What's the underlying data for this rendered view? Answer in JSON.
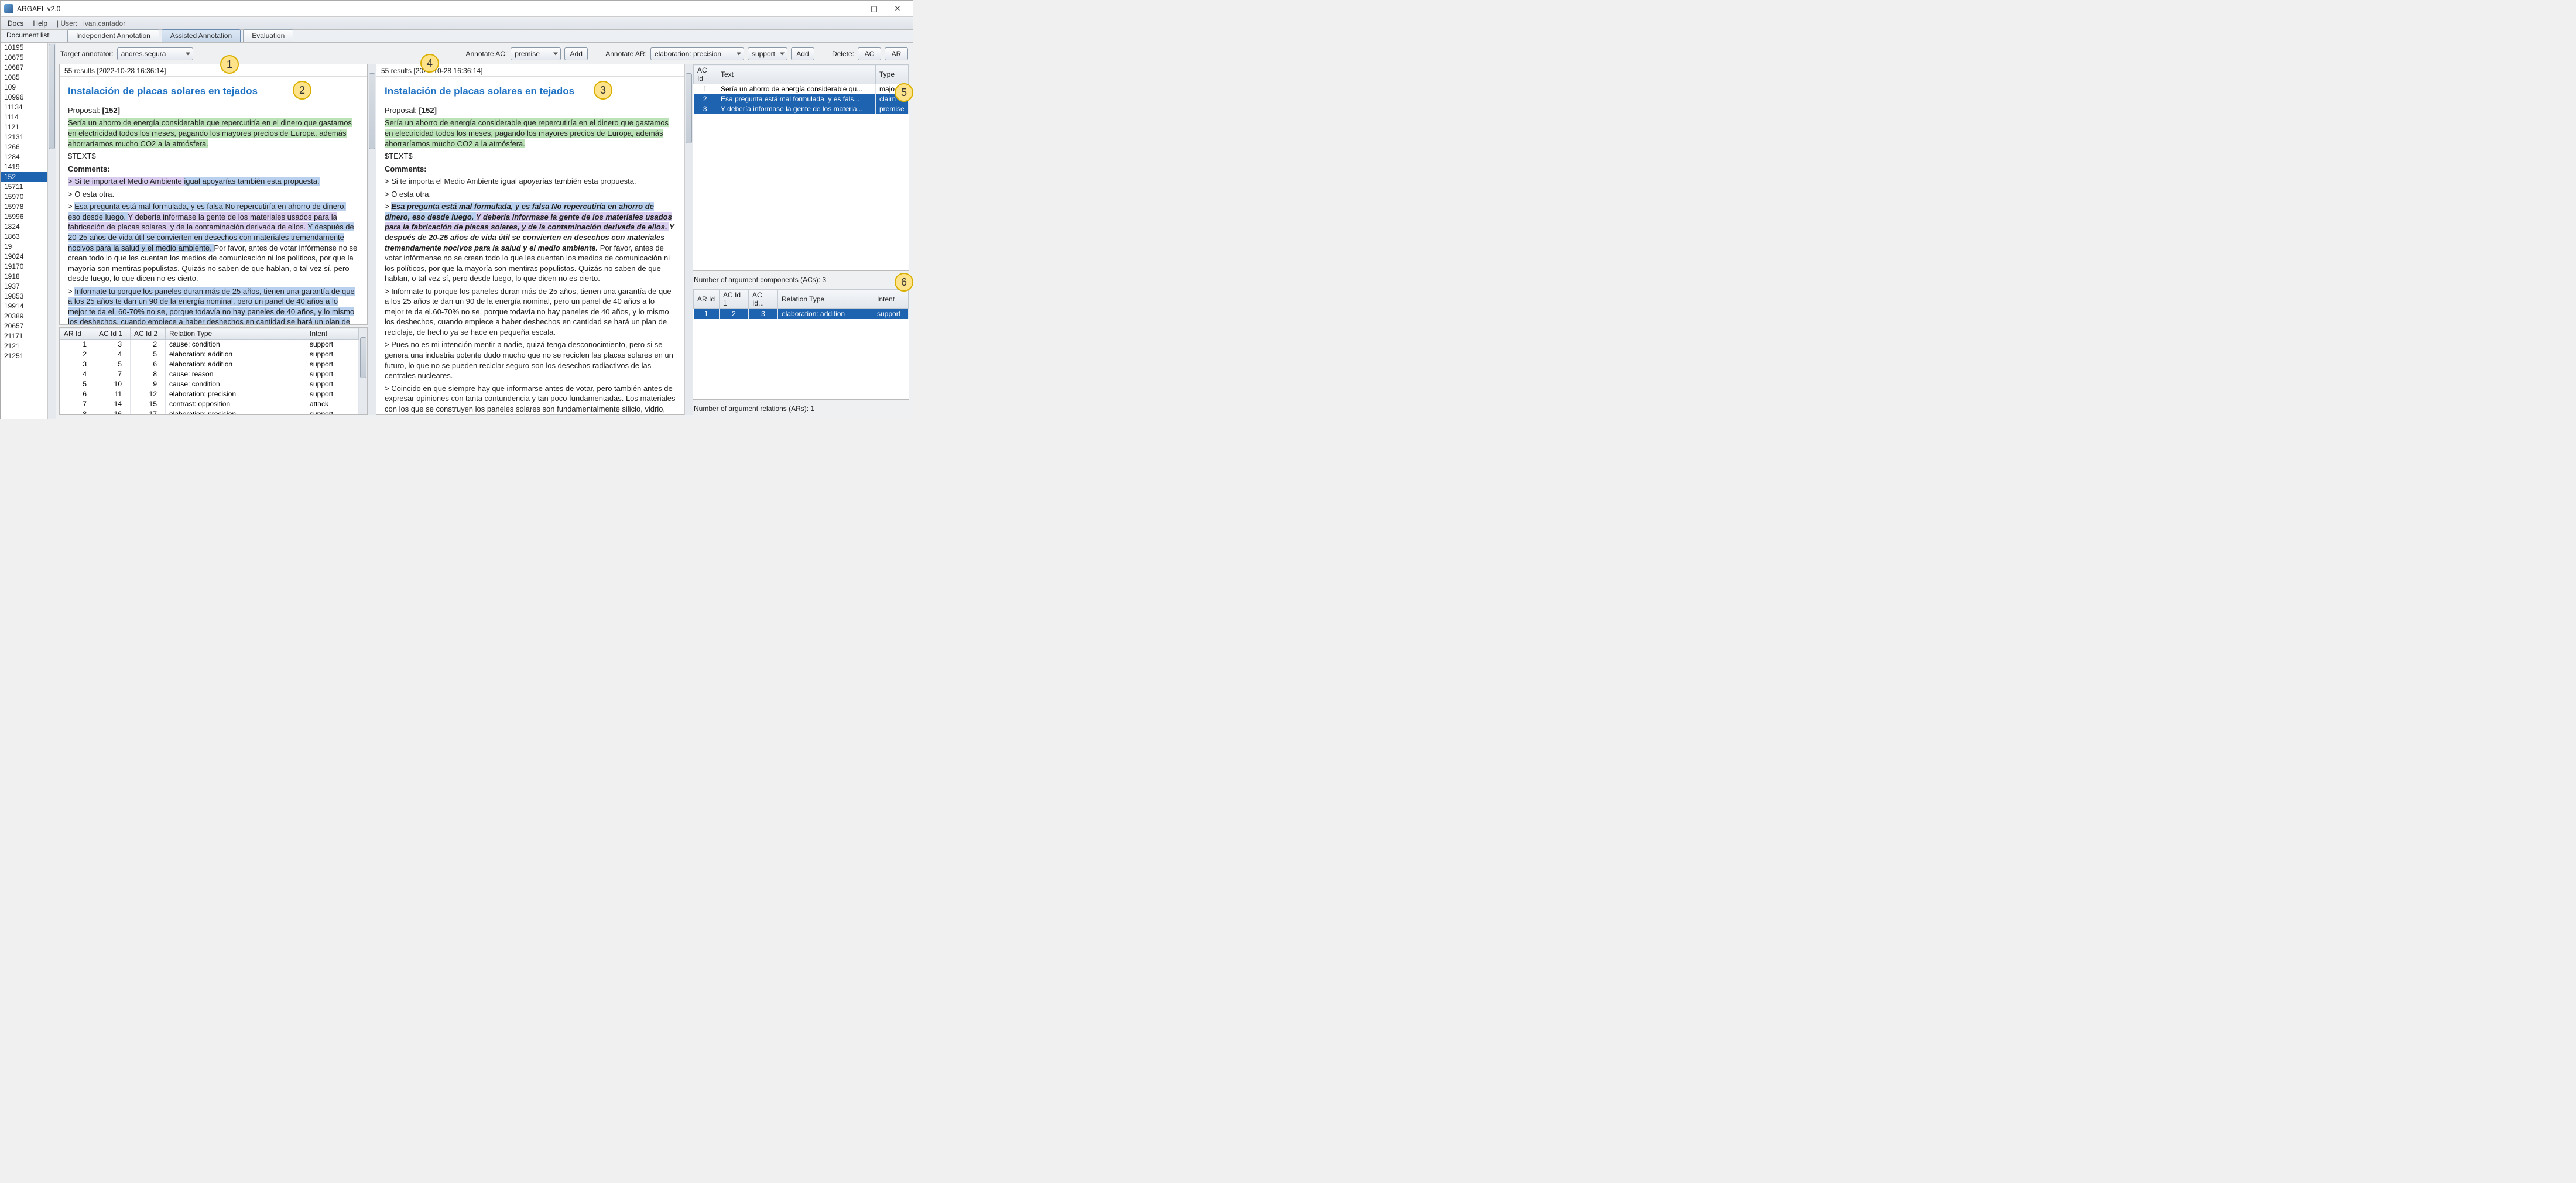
{
  "window": {
    "title": "ARGAEL v2.0",
    "min_icon": "—",
    "max_icon": "▢",
    "close_icon": "✕"
  },
  "menubar": {
    "docs": "Docs",
    "help": "Help",
    "user_prefix": "| User:",
    "user": "ivan.cantador"
  },
  "docstrip": {
    "label": "Document list:",
    "tab_indep": "Independent Annotation",
    "tab_assist": "Assisted Annotation",
    "tab_eval": "Evaluation"
  },
  "toolbar": {
    "target_label": "Target annotator:",
    "target_value": "andres.segura",
    "annotate_ac_label": "Annotate AC:",
    "ac_value": "premise",
    "add": "Add",
    "annotate_ar_label": "Annotate AR:",
    "ar_value": "elaboration: precision",
    "intent_value": "support",
    "delete_label": "Delete:",
    "del_ac": "AC",
    "del_ar": "AR"
  },
  "sidebar_items": [
    "10195",
    "10675",
    "10687",
    "1085",
    "109",
    "10996",
    "11134",
    "1114",
    "1121",
    "12131",
    "1266",
    "1284",
    "1419",
    "152",
    "15711",
    "15970",
    "15978",
    "15996",
    "1824",
    "1863",
    "19",
    "19024",
    "19170",
    "1918",
    "1937",
    "19853",
    "19914",
    "20389",
    "20657",
    "21171",
    "2121",
    "21251"
  ],
  "sidebar_selected": "152",
  "status_line": "55 results [2022-10-28 16:36:14]",
  "article": {
    "title": "Instalación de placas solares en tejados",
    "proposal_label": "Proposal:",
    "proposal_num": "[152]",
    "green": "Sería un ahorro de energía considerable que repercutiría en el dinero que gastamos en electricidad todos los meses, pagando los mayores precios de Europa, además ahorraríamos mucho CO2 a la atmósfera.",
    "text_placeholder": "$TEXT$",
    "comments_label": "Comments:",
    "c1a": "> Si te importa el Medio Ambiente ",
    "c1b": "igual apoyarías también esta propuesta.",
    "c2": "> O esta otra.",
    "c3_blue_a": "Esa pregunta está mal formulada, y es falsa No repercutiría en ahorro de dinero, eso desde luego. ",
    "c3_purp": "Y debería informase la gente de los materiales usados para la fabricación de placas solares, y de la contaminación derivada de ellos. ",
    "c3_blue_b": "Y después de 20-25 años de vida útil se convierten en desechos con materiales tremendamente nocivos para la salud y el medio ambiente. ",
    "c3_tail": "Por favor, antes de votar infórmense no se crean todo lo que les cuentan los medios de comunicación ni los políticos, por que la mayoría son mentiras populistas. Quizás no saben de que hablan, o tal vez sí, pero desde luego, lo que dicen no es cierto.",
    "c4_blue": "Informate tu porque los paneles duran más de 25 años, tienen una garantía de que a los 25 años te dan un 90 de la energía nominal, pero un panel de 40 años a lo mejor te da el. 60-70% no se, porque todavía no hay paneles de 40 años, y lo mismo los deshechos, cuando empiece a haber deshechos en cantidad se hará un plan de reciclaje, de hecho ya",
    "right_c4": "> Informate tu porque los paneles duran más de 25 años, tienen una garantía de que a los 25 años te dan un 90 de la energía nominal, pero un panel de 40 años a lo mejor te da el.60-70% no se, porque todavía no hay paneles de 40 años, y lo mismo los deshechos, cuando empiece a haber deshechos en cantidad se hará un plan de reciclaje, de hecho ya se hace en pequeña escala.",
    "right_c5": "> Pues no es mi intención mentir a nadie, quizá tenga desconocimiento, pero si se genera una industria potente dudo mucho que no se reciclen las placas solares en un futuro, lo que no se pueden reciclar seguro son los desechos radiactivos de las centrales nucleares.",
    "right_c6": "> Coincido en que siempre hay que informarse antes de votar, pero también antes de expresar opiniones con tanta contundencia y tan poco fundamentadas. Los materiales con los que se construyen los paneles solares son fundamentalmente silicio, vidrio,"
  },
  "ar_table_left": {
    "cols": [
      "AR Id",
      "AC Id 1",
      "AC Id 2",
      "Relation Type",
      "Intent"
    ],
    "rows": [
      [
        "1",
        "3",
        "2",
        "cause: condition",
        "support"
      ],
      [
        "2",
        "4",
        "5",
        "elaboration: addition",
        "support"
      ],
      [
        "3",
        "5",
        "6",
        "elaboration: addition",
        "support"
      ],
      [
        "4",
        "7",
        "8",
        "cause: reason",
        "support"
      ],
      [
        "5",
        "10",
        "9",
        "cause: condition",
        "support"
      ],
      [
        "6",
        "11",
        "12",
        "elaboration: precision",
        "support"
      ],
      [
        "7",
        "14",
        "15",
        "contrast: opposition",
        "attack"
      ],
      [
        "8",
        "16",
        "17",
        "elaboration: precision",
        "support"
      ]
    ]
  },
  "ac_table_right": {
    "cols": [
      "AC Id",
      "Text",
      "Type"
    ],
    "rows": [
      [
        "1",
        "Sería un ahorro de energía considerable qu...",
        "majo..."
      ],
      [
        "2",
        "Esa pregunta está mal formulada, y es fals...",
        "claim"
      ],
      [
        "3",
        "Y debería informase la gente de los materia...",
        "premise"
      ]
    ],
    "summary": "Number of argument components (ACs): 3"
  },
  "ar_table_right": {
    "cols": [
      "AR Id",
      "AC Id 1",
      "AC Id...",
      "Relation Type",
      "Intent"
    ],
    "rows": [
      [
        "1",
        "2",
        "3",
        "elaboration: addition",
        "support"
      ]
    ],
    "summary": "Number of argument relations (ARs): 1"
  },
  "badges": {
    "b1": "1",
    "b2": "2",
    "b3": "3",
    "b4": "4",
    "b5": "5",
    "b6": "6"
  },
  "prefix_arrow": "> "
}
